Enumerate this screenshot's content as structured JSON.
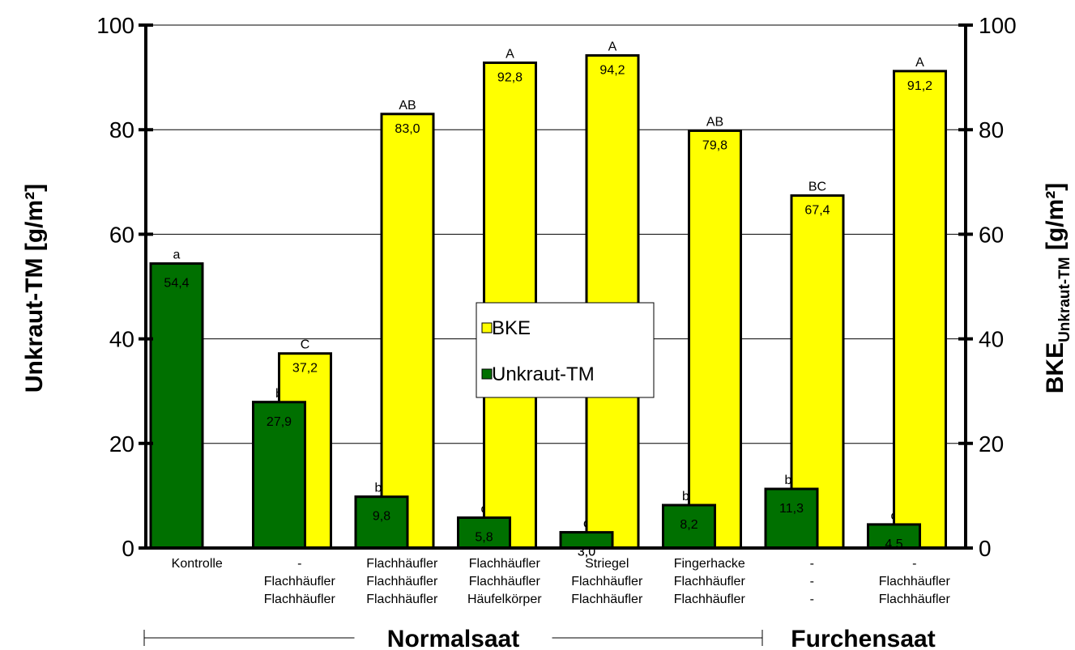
{
  "chart_data": {
    "type": "bar",
    "y_left": {
      "label": "Unkraut-TM [g/m²]",
      "ticks": [
        0,
        20,
        40,
        60,
        80,
        100
      ],
      "ylim": [
        0,
        100
      ]
    },
    "y_right": {
      "label_main": "BKE",
      "label_sub": "Unkraut-TM",
      "label_unit": " [g/m²]",
      "ticks": [
        0,
        20,
        40,
        60,
        80,
        100
      ],
      "ylim": [
        0,
        100
      ]
    },
    "categories": [
      {
        "line1": "Kontrolle",
        "line2": "",
        "line3": ""
      },
      {
        "line1": "-",
        "line2": "Flachhäufler",
        "line3": "Flachhäufler"
      },
      {
        "line1": "Flachhäufler",
        "line2": "Flachhäufler",
        "line3": "Flachhäufler"
      },
      {
        "line1": "Flachhäufler",
        "line2": "Flachhäufler",
        "line3": "Häufelkörper"
      },
      {
        "line1": "Striegel",
        "line2": "Flachhäufler",
        "line3": "Flachhäufler"
      },
      {
        "line1": "Fingerhacke",
        "line2": "Flachhäufler",
        "line3": "Flachhäufler"
      },
      {
        "line1": "-",
        "line2": "-",
        "line3": "-"
      },
      {
        "line1": "-",
        "line2": "Flachhäufler",
        "line3": "Flachhäufler"
      }
    ],
    "series": [
      {
        "name": "Unkraut-TM",
        "color": "#007000",
        "values": [
          54.4,
          27.9,
          9.8,
          5.8,
          3.0,
          8.2,
          11.3,
          4.5
        ],
        "labels": [
          "54,4",
          "27,9",
          "9,8",
          "5,8",
          "3,0",
          "8,2",
          "11,3",
          "4,5"
        ],
        "letters": [
          "a",
          "b",
          "bc",
          "c",
          "c",
          "bc",
          "bc",
          "c"
        ]
      },
      {
        "name": "BKE",
        "color": "#ffff00",
        "values": [
          null,
          37.2,
          83.0,
          92.8,
          94.2,
          79.8,
          67.4,
          91.2
        ],
        "labels": [
          "",
          "37,2",
          "83,0",
          "92,8",
          "94,2",
          "79,8",
          "67,4",
          "91,2"
        ],
        "letters": [
          "",
          "C",
          "AB",
          "A",
          "A",
          "AB",
          "BC",
          "A"
        ]
      }
    ],
    "groups": [
      {
        "label": "Normalsaat",
        "from": 0,
        "to": 5
      },
      {
        "label": "Furchensaat",
        "from": 6,
        "to": 7
      }
    ],
    "legend": {
      "position": "center",
      "entries": [
        "BKE",
        "Unkraut-TM"
      ]
    },
    "grid": true
  }
}
